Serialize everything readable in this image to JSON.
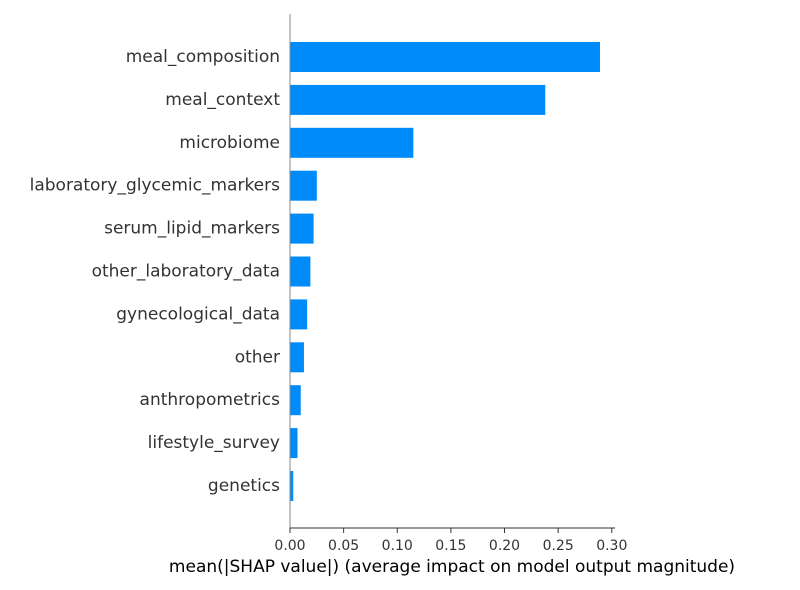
{
  "chart_data": {
    "type": "bar",
    "orientation": "horizontal",
    "categories": [
      "meal_composition",
      "meal_context",
      "microbiome",
      "laboratory_glycemic_markers",
      "serum_lipid_markers",
      "other_laboratory_data",
      "gynecological_data",
      "other",
      "anthropometrics",
      "lifestyle_survey",
      "genetics"
    ],
    "values": [
      0.289,
      0.238,
      0.115,
      0.025,
      0.022,
      0.019,
      0.016,
      0.013,
      0.01,
      0.007,
      0.003
    ],
    "xlabel": "mean(|SHAP value|) (average impact on model output magnitude)",
    "ylabel": "",
    "xlim": [
      0,
      0.303
    ],
    "xticks": [
      "0.00",
      "0.05",
      "0.10",
      "0.15",
      "0.20",
      "0.25",
      "0.30"
    ],
    "xtick_values": [
      0,
      0.05,
      0.1,
      0.15,
      0.2,
      0.25,
      0.3
    ],
    "grid": false,
    "bar_color": "#008bfb",
    "axis_color": "#888888",
    "text_color": "#333333"
  }
}
